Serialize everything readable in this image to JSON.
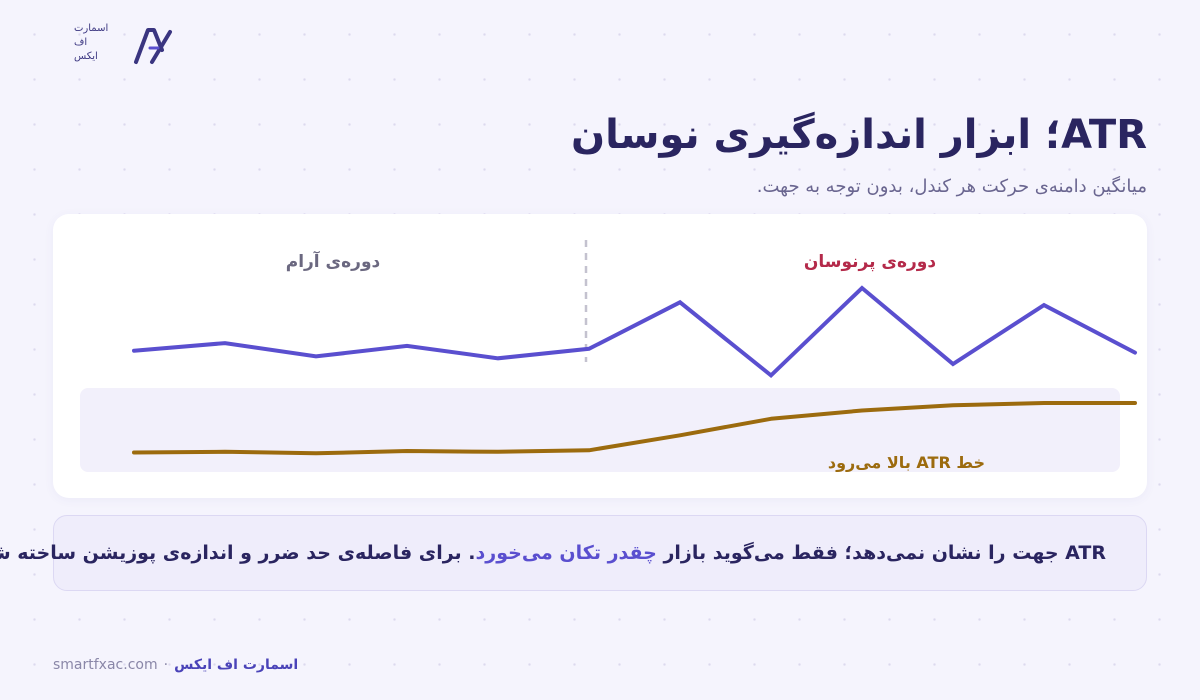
{
  "logo": {
    "lines": [
      "اسمارت",
      "اف",
      "ایکس"
    ],
    "colors": {
      "primary": "#3a3580",
      "accent": "#5a4fcf"
    }
  },
  "header": {
    "title": "ATR؛ ابزار اندازه‌گیری نوسان",
    "subtitle": "میانگین دامنه‌ی حرکت هر کندل، بدون توجه به جهت."
  },
  "chart_data": {
    "type": "line",
    "x": [
      0,
      1,
      2,
      3,
      4,
      5,
      6,
      7,
      8,
      9,
      10,
      11
    ],
    "series": [
      {
        "values": [
          3.4,
          4.2,
          2.8,
          3.9,
          2.6,
          3.6,
          8.5,
          0.8,
          10.0,
          2.0,
          8.2,
          3.2
        ],
        "color": "#5a4fcf"
      },
      {
        "values": [
          1.0,
          1.1,
          0.9,
          1.2,
          1.1,
          1.3,
          3.3,
          5.5,
          6.6,
          7.3,
          7.6,
          7.6
        ],
        "color": "#9c6b0e"
      }
    ],
    "annotations": {
      "calm_period": "دوره‌ی آرام",
      "volatile_period": "دوره‌ی پرنوسان",
      "atr_label": "خط ATR بالا می‌رود"
    },
    "colors": {
      "calm_label": "#6b6880",
      "volatile_label": "#b42a4a",
      "divider": "#c4c2cf",
      "atr_band": "#f2f0fb"
    }
  },
  "note": {
    "part1": "ATR جهت را نشان نمی‌دهد؛ فقط می‌گوید بازار ",
    "highlight": "چقدر تکان می‌خورد",
    "part2": ". برای فاصله‌ی حد ضرر و اندازه‌ی پوزیشن ساخته شده."
  },
  "footer": {
    "domain": "smartfxac.com",
    "separator": "·",
    "brand": "اسمارت اف ایکس"
  }
}
